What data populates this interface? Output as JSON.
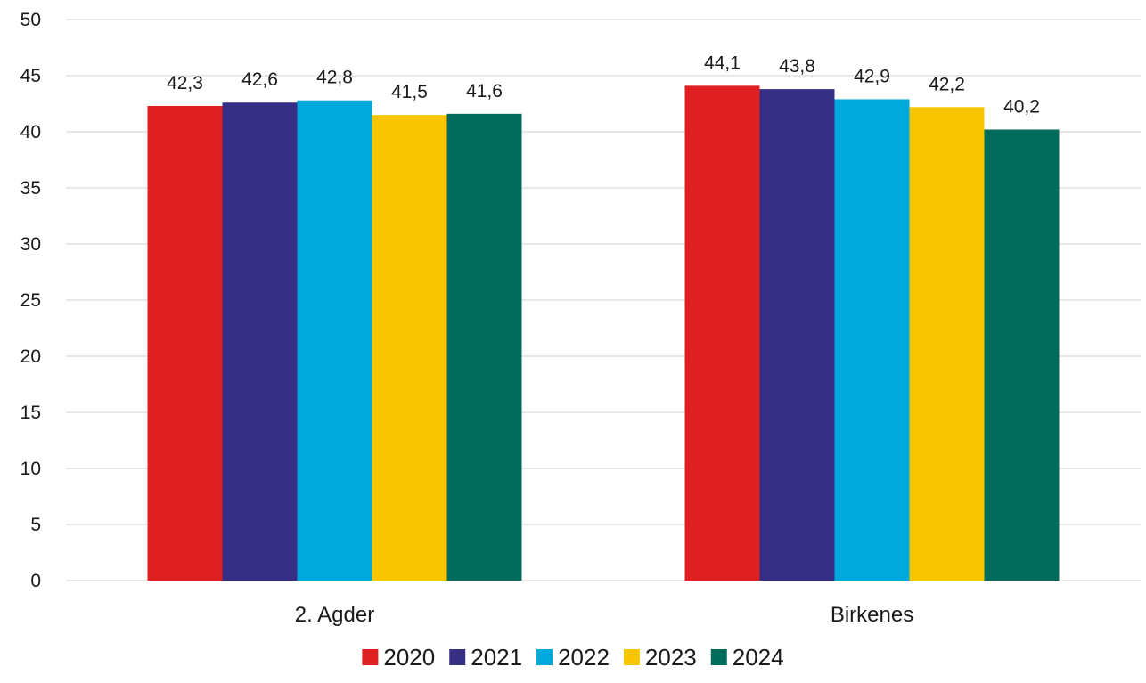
{
  "chart_data": {
    "type": "bar",
    "title": "",
    "xlabel": "",
    "ylabel": "",
    "categories": [
      "2. Agder",
      "Birkenes"
    ],
    "series": [
      {
        "name": "2020",
        "color": "#e02020",
        "values": [
          42.3,
          44.1
        ],
        "labels": [
          "42,3",
          "44,1"
        ]
      },
      {
        "name": "2021",
        "color": "#372e86",
        "values": [
          42.6,
          43.8
        ],
        "labels": [
          "42,6",
          "43,8"
        ]
      },
      {
        "name": "2022",
        "color": "#00a9dc",
        "values": [
          42.8,
          42.9
        ],
        "labels": [
          "42,8",
          "42,9"
        ]
      },
      {
        "name": "2023",
        "color": "#f7c600",
        "values": [
          41.5,
          42.2
        ],
        "labels": [
          "41,5",
          "42,2"
        ]
      },
      {
        "name": "2024",
        "color": "#006b5a",
        "values": [
          41.6,
          40.2
        ],
        "labels": [
          "41,6",
          "40,2"
        ]
      }
    ],
    "ylim": [
      0,
      50
    ],
    "yticks": [
      0,
      5,
      10,
      15,
      20,
      25,
      30,
      35,
      40,
      45,
      50
    ],
    "grid": true,
    "legend_position": "bottom"
  }
}
